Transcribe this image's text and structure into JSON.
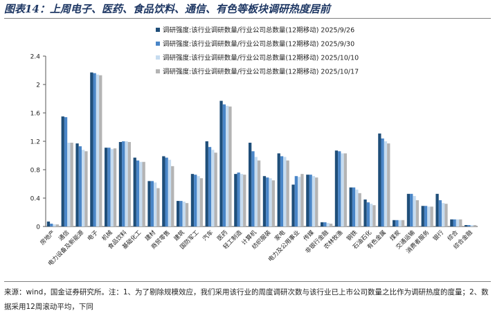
{
  "title": "图表14：上周电子、医药、食品饮料、通信、有色等板块调研热度居前",
  "footnote": "来源：wind，国金证券研究所。注：1、为了剔除规模效应，我们采用该行业的周度调研次数与该行业已上市公司数量之比作为调研热度的度量；2、数据采用12周滚动平均，下同",
  "chart_data": {
    "type": "bar",
    "title": "",
    "xlabel": "",
    "ylabel": "",
    "ylim": [
      0,
      2.4
    ],
    "yticks": [
      "0",
      "0.4",
      "0.8",
      "1.2",
      "1.6",
      "2",
      "2.4"
    ],
    "grid": false,
    "legend_position": "top-right",
    "categories": [
      "房地产",
      "通信",
      "电力设备及新能源",
      "电子",
      "机械",
      "食品饮料",
      "基础化工",
      "建材",
      "商贸零售",
      "建筑",
      "国防军工",
      "汽车",
      "医药",
      "轻工制造",
      "计算机",
      "纺织服装",
      "家电",
      "电力及公用事业",
      "传媒",
      "非银行金融",
      "农林牧渔",
      "钢铁",
      "石油石化",
      "有色金属",
      "煤炭",
      "交通运输",
      "消费者服务",
      "银行",
      "综合",
      "综合金融"
    ],
    "series": [
      {
        "name": "调研强度:该行业调研数量/行业公司总数量(12期移动) 2025/9/26",
        "color": "#1f4e79",
        "values": [
          0.07,
          1.55,
          1.17,
          2.17,
          1.11,
          1.19,
          0.97,
          0.64,
          0.99,
          0.36,
          0.74,
          1.2,
          1.77,
          0.74,
          1.18,
          0.71,
          1.03,
          0.59,
          0.73,
          0.06,
          1.07,
          0.55,
          0.38,
          1.31,
          0.09,
          0.46,
          0.29,
          0.46,
          0.1,
          0.02
        ]
      },
      {
        "name": "调研强度:该行业调研数量/行业公司总数量(12期移动) 2025/9/30",
        "color": "#4a86c8",
        "values": [
          0.04,
          1.54,
          1.13,
          2.16,
          1.11,
          1.2,
          0.93,
          0.64,
          0.97,
          0.36,
          0.73,
          1.12,
          1.72,
          0.76,
          1.06,
          0.69,
          0.99,
          0.71,
          0.73,
          0.06,
          1.06,
          0.55,
          0.34,
          1.24,
          0.09,
          0.46,
          0.29,
          0.37,
          0.1,
          0.02
        ]
      },
      {
        "name": "调研强度:该行业调研数量/行业公司总数量(12期移动) 2025/10/10",
        "color": "#c6dcf0",
        "values": [
          0.03,
          1.18,
          1.08,
          2.14,
          1.09,
          1.2,
          0.91,
          0.62,
          0.94,
          0.35,
          0.71,
          1.08,
          1.7,
          0.74,
          0.98,
          0.68,
          0.98,
          0.7,
          0.71,
          0.05,
          1.03,
          0.52,
          0.32,
          1.2,
          0.09,
          0.43,
          0.28,
          0.33,
          0.1,
          0.02
        ]
      },
      {
        "name": "调研强度:该行业调研数量/行业公司总数量(12期移动) 2025/10/17",
        "color": "#b4b4b4",
        "values": [
          0.03,
          1.18,
          1.06,
          2.13,
          1.1,
          1.19,
          0.91,
          0.54,
          0.85,
          0.33,
          0.68,
          1.04,
          1.69,
          0.73,
          0.93,
          0.65,
          0.93,
          0.74,
          0.69,
          0.04,
          1.03,
          0.47,
          0.3,
          1.17,
          0.09,
          0.37,
          0.28,
          0.32,
          0.1,
          0.02
        ]
      }
    ]
  }
}
